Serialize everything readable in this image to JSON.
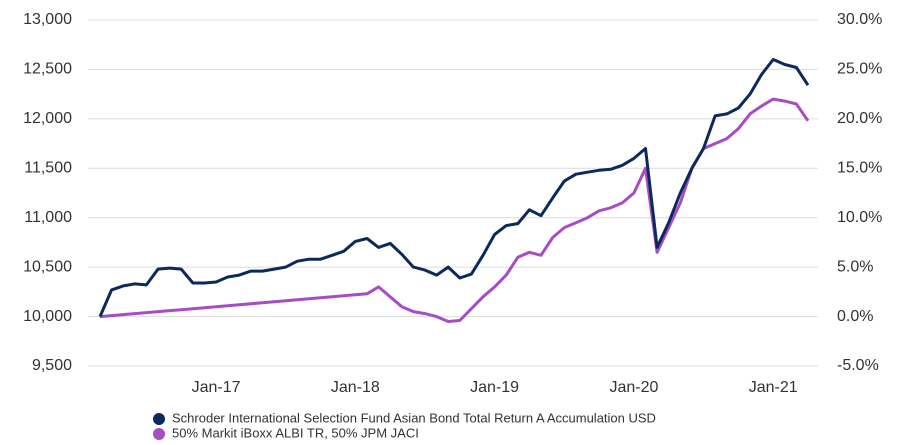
{
  "chart_data": {
    "type": "line",
    "x": [
      "2016-03",
      "2016-04",
      "2016-05",
      "2016-06",
      "2016-07",
      "2016-08",
      "2016-09",
      "2016-10",
      "2016-11",
      "2016-12",
      "2017-01",
      "2017-02",
      "2017-03",
      "2017-04",
      "2017-05",
      "2017-06",
      "2017-07",
      "2017-08",
      "2017-09",
      "2017-10",
      "2017-11",
      "2017-12",
      "2018-01",
      "2018-02",
      "2018-03",
      "2018-04",
      "2018-05",
      "2018-06",
      "2018-07",
      "2018-08",
      "2018-09",
      "2018-10",
      "2018-11",
      "2018-12",
      "2019-01",
      "2019-02",
      "2019-03",
      "2019-04",
      "2019-05",
      "2019-06",
      "2019-07",
      "2019-08",
      "2019-09",
      "2019-10",
      "2019-11",
      "2019-12",
      "2020-01",
      "2020-02",
      "2020-03",
      "2020-04",
      "2020-05",
      "2020-06",
      "2020-07",
      "2020-08",
      "2020-09",
      "2020-10",
      "2020-11",
      "2020-12",
      "2021-01",
      "2021-02",
      "2021-03",
      "2021-04"
    ],
    "series": [
      {
        "name": "Schroder International Selection Fund Asian Bond Total Return A Accumulation USD",
        "color": "#0b2a5b",
        "values": [
          10000,
          10270,
          10310,
          10330,
          10320,
          10480,
          10490,
          10480,
          10340,
          10340,
          10350,
          10400,
          10420,
          10460,
          10460,
          10480,
          10500,
          10560,
          10580,
          10580,
          10620,
          10660,
          10760,
          10790,
          10700,
          10740,
          10630,
          10500,
          10470,
          10420,
          10500,
          10390,
          10430,
          10620,
          10830,
          10920,
          10940,
          11080,
          11020,
          11200,
          11370,
          11440,
          11460,
          11480,
          11490,
          11530,
          11600,
          11700,
          10700,
          10950,
          11250,
          11500,
          11700,
          12030,
          12050,
          12110,
          12250,
          12450,
          12600,
          12550,
          12520,
          12340
        ]
      },
      {
        "name": "50% Markit iBoxx ALBI TR, 50% JPM JACI",
        "color": "#a64dc4",
        "values": [
          10000,
          10010,
          10020,
          10030,
          10040,
          10050,
          10060,
          10070,
          10080,
          10090,
          10100,
          10110,
          10120,
          10130,
          10140,
          10150,
          10160,
          10170,
          10180,
          10190,
          10200,
          10210,
          10220,
          10230,
          10300,
          10200,
          10100,
          10050,
          10030,
          10000,
          9950,
          9960,
          10080,
          10200,
          10300,
          10420,
          10600,
          10650,
          10620,
          10800,
          10900,
          10950,
          11000,
          11070,
          11100,
          11150,
          11250,
          11500,
          10650,
          10900,
          11150,
          11500,
          11700,
          11750,
          11800,
          11900,
          12050,
          12130,
          12200,
          12180,
          12150,
          11980
        ]
      }
    ],
    "xlim": [
      "2016-03",
      "2021-04"
    ],
    "xticks": [
      {
        "value": "2017-01",
        "label": "Jan-17"
      },
      {
        "value": "2018-01",
        "label": "Jan-18"
      },
      {
        "value": "2019-01",
        "label": "Jan-19"
      },
      {
        "value": "2020-01",
        "label": "Jan-20"
      },
      {
        "value": "2021-01",
        "label": "Jan-21"
      }
    ],
    "ylim": [
      9500,
      13000
    ],
    "yticks": [
      {
        "value": 9500,
        "label": "9,500"
      },
      {
        "value": 10000,
        "label": "10,000"
      },
      {
        "value": 10500,
        "label": "10,500"
      },
      {
        "value": 11000,
        "label": "11,000"
      },
      {
        "value": 11500,
        "label": "11,500"
      },
      {
        "value": 12000,
        "label": "12,000"
      },
      {
        "value": 12500,
        "label": "12,500"
      },
      {
        "value": 13000,
        "label": "13,000"
      }
    ],
    "y2lim": [
      -5,
      30
    ],
    "y2ticks": [
      {
        "value": -5,
        "label": "-5.0%"
      },
      {
        "value": 0,
        "label": "0.0%"
      },
      {
        "value": 5,
        "label": "5.0%"
      },
      {
        "value": 10,
        "label": "10.0%"
      },
      {
        "value": 15,
        "label": "15.0%"
      },
      {
        "value": 20,
        "label": "20.0%"
      },
      {
        "value": 25,
        "label": "25.0%"
      },
      {
        "value": 30,
        "label": "30.0%"
      }
    ],
    "grid": true
  }
}
